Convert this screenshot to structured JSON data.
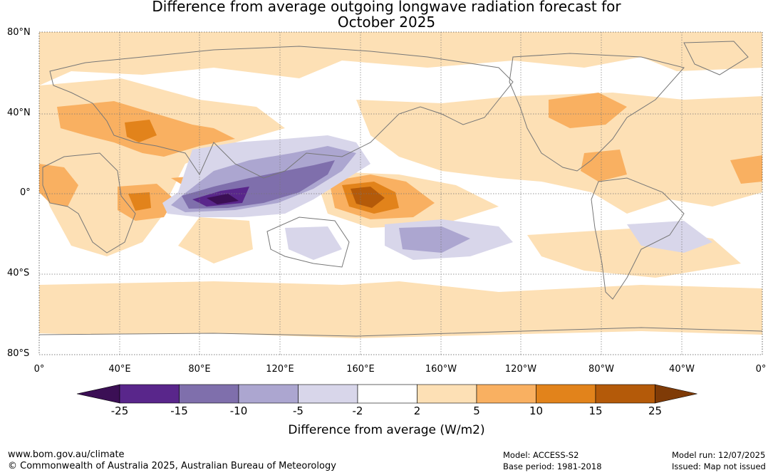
{
  "title": {
    "line1": "Difference from average outgoing longwave radiation forecast for",
    "line2": "October 2025"
  },
  "axes": {
    "lat_labels": [
      "80°N",
      "40°N",
      "0°",
      "40°S",
      "80°S"
    ],
    "lon_labels": [
      "0°",
      "40°E",
      "80°E",
      "120°E",
      "160°E",
      "160°W",
      "120°W",
      "80°W",
      "40°W",
      "0°"
    ]
  },
  "colorbar": {
    "title": "Difference from average (W/m2)",
    "ticks": [
      "-25",
      "-15",
      "-10",
      "-5",
      "-2",
      "2",
      "5",
      "10",
      "15",
      "25"
    ],
    "colors": [
      "#3b0f55",
      "#59268b",
      "#7f6fac",
      "#aca6d0",
      "#d8d6ea",
      "#ffffff",
      "#fde0b5",
      "#f9b061",
      "#e2831b",
      "#b45a09",
      "#7f3b07"
    ]
  },
  "footer": {
    "website": "www.bom.gov.au/climate",
    "copyright": "© Commonwealth of Australia 2025, Australian Bureau of Meteorology",
    "model": "Model: ACCESS-S2",
    "base_period": "Base period: 1981-2018",
    "model_run": "Model run: 12/07/2025",
    "issued": "Issued: Map not issued"
  }
}
